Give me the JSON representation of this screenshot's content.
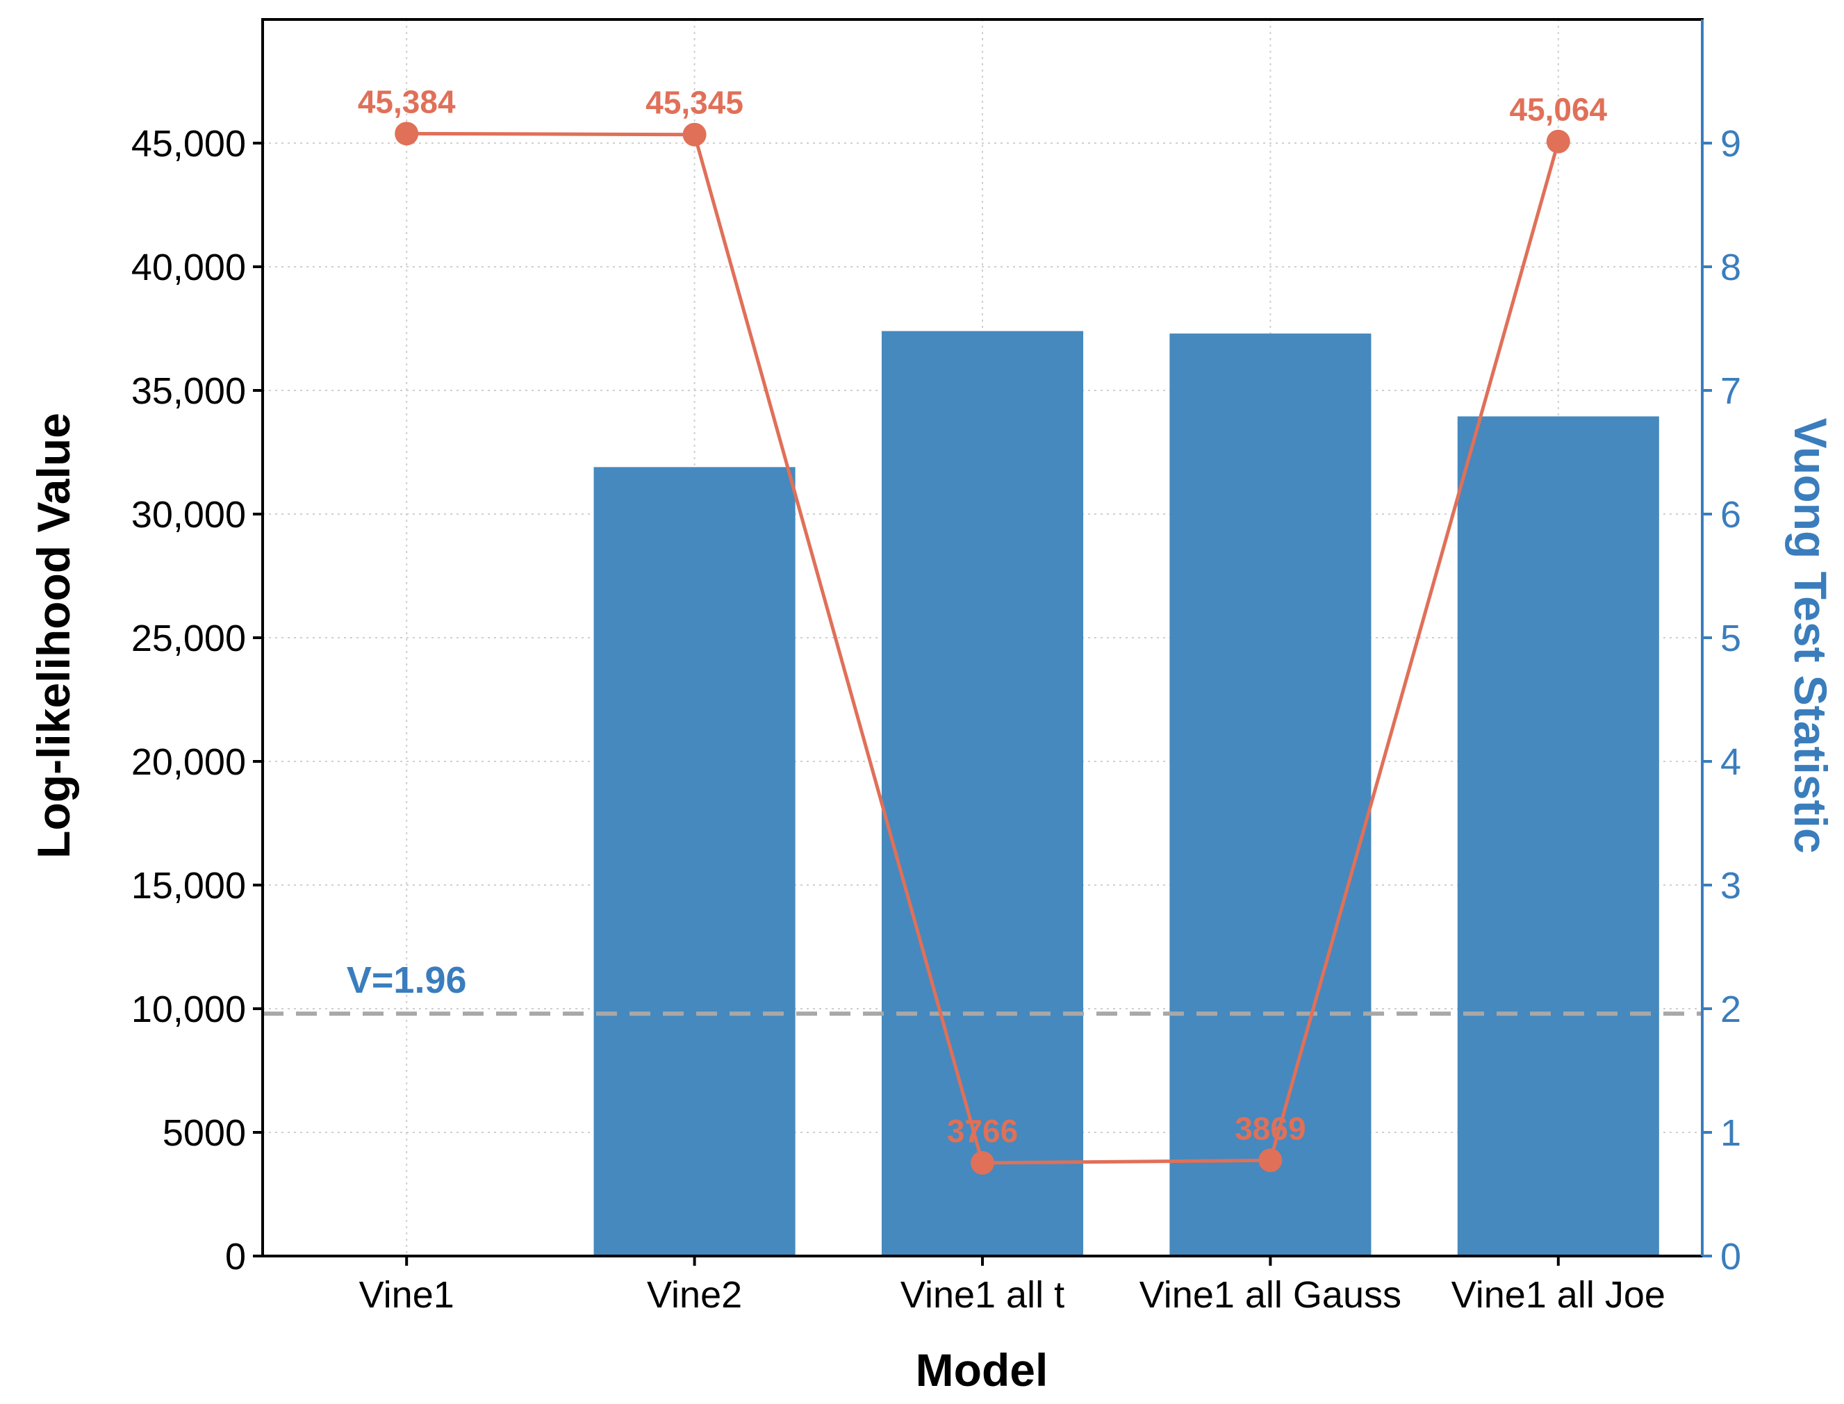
{
  "chart_data": {
    "type": "bar",
    "xlabel": "Model",
    "categories": [
      "Vine1",
      "Vine2",
      "Vine1 all t",
      "Vine1 all Gauss",
      "Vine1 all Joe"
    ],
    "series": [
      {
        "type": "bar",
        "axis": "right",
        "color": "#4589BE",
        "values": [
          0,
          6.38,
          7.48,
          7.46,
          6.79
        ]
      },
      {
        "type": "line",
        "axis": "left",
        "color": "#E07058",
        "values": [
          45384,
          45345,
          3766,
          3869,
          45064
        ],
        "data_labels": [
          "45,384",
          "45,345",
          "3766",
          "3869",
          "45,064"
        ]
      }
    ],
    "left_axis": {
      "label": "Log-likelihood Value",
      "range": [
        0,
        50000
      ],
      "ticks": [
        0,
        5000,
        10000,
        15000,
        20000,
        25000,
        30000,
        35000,
        40000,
        45000
      ],
      "tick_labels": [
        "0",
        "5000",
        "10,000",
        "15,000",
        "20,000",
        "25,000",
        "30,000",
        "35,000",
        "40,000",
        "45,000"
      ]
    },
    "right_axis": {
      "label": "Vuong Test Statistic",
      "color": "#3A7DBD",
      "range": [
        0,
        10
      ],
      "ticks": [
        0,
        1,
        2,
        3,
        4,
        5,
        6,
        7,
        8,
        9
      ],
      "tick_labels": [
        "0",
        "1",
        "2",
        "3",
        "4",
        "5",
        "6",
        "7",
        "8",
        "9"
      ]
    },
    "reference_line": {
      "axis": "right",
      "value": 1.96,
      "label": "V=1.96",
      "color": "#A8A8A8",
      "label_color": "#3A7DBD"
    },
    "grid": true
  }
}
